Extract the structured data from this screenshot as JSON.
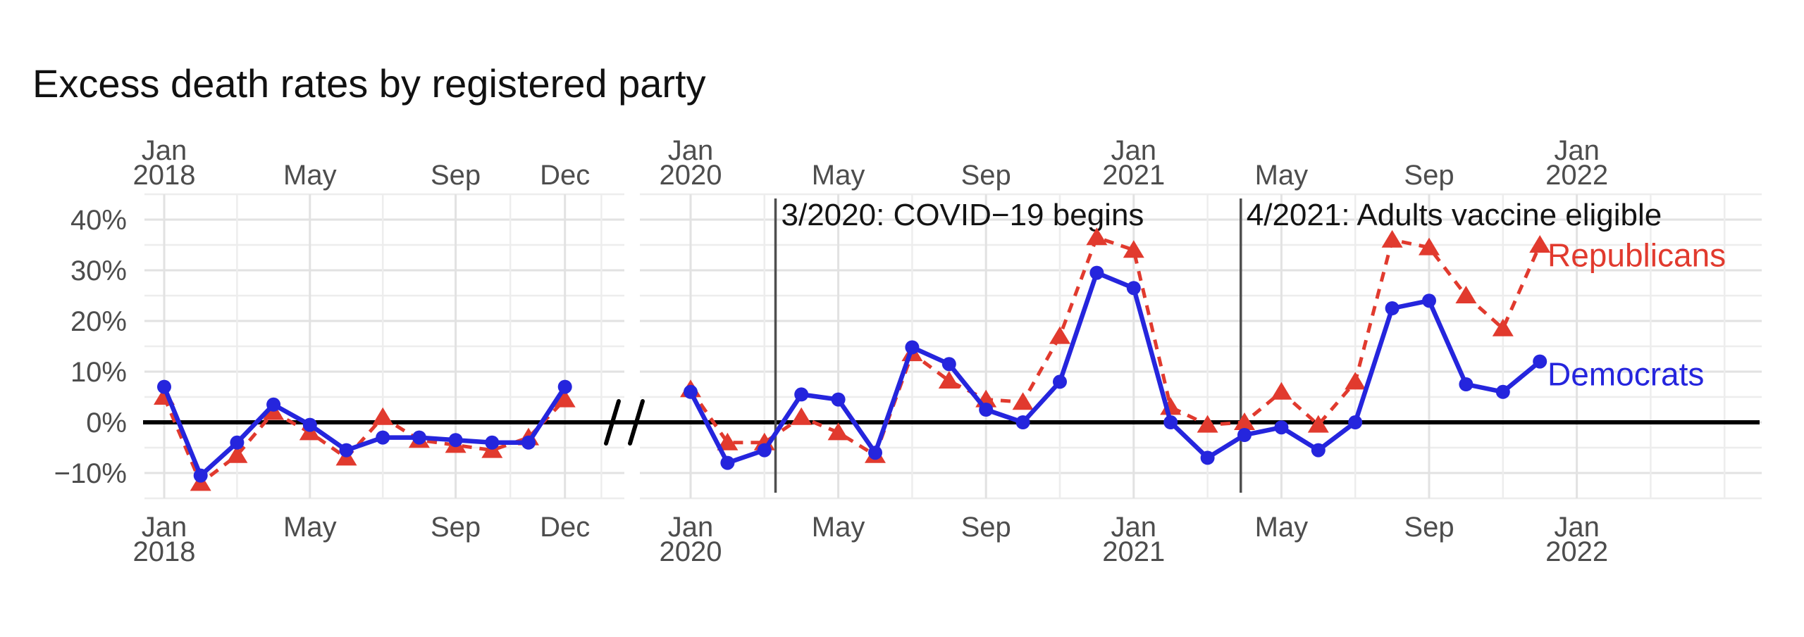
{
  "title": "Excess death rates by registered party",
  "colors": {
    "republicans": "#e13a2e",
    "democrats": "#2525dd",
    "zero_line": "#000000",
    "event_line": "#4f4f4f",
    "grid_major": "#e2e2e2",
    "grid_minor": "#ededed",
    "axis_label": "#4d4d4d",
    "annotation": "#141414",
    "background": "#ffffff"
  },
  "chart_data": {
    "type": "line",
    "title": "Excess death rates by registered party",
    "xlabel": "",
    "ylabel": "",
    "grid": true,
    "x_axis": {
      "note": "broken time axis",
      "break_between": [
        "Dec 2018",
        "Jan 2020"
      ],
      "labels_shown_top_and_bottom": true
    },
    "y_axis": {
      "ylim": [
        -15,
        45
      ],
      "major_ticks": [
        -10,
        0,
        10,
        20,
        30,
        40
      ],
      "tick_labels": [
        "−10%",
        "0%",
        "10%",
        "20%",
        "30%",
        "40%"
      ],
      "minor_ticks": [
        -15,
        -5,
        5,
        15,
        25,
        35,
        45
      ],
      "zero_reference_line": true
    },
    "panels": [
      {
        "id": "panel-2018",
        "months": [
          "Jan 2018",
          "Feb 2018",
          "Mar 2018",
          "Apr 2018",
          "May 2018",
          "Jun 2018",
          "Jul 2018",
          "Aug 2018",
          "Sep 2018",
          "Oct 2018",
          "Nov 2018",
          "Dec 2018"
        ],
        "axis_labels": [
          {
            "month": 0,
            "line1": "Jan",
            "line2": "2018"
          },
          {
            "month": 4,
            "line1": "May"
          },
          {
            "month": 8,
            "line1": "Sep"
          },
          {
            "month": 11,
            "line1": "Dec"
          }
        ],
        "grid_major_months": [
          0,
          4,
          8,
          11
        ],
        "grid_minor_months": [
          2,
          6,
          9.5,
          12
        ],
        "series": [
          {
            "name": "Republicans",
            "values": [
              5,
              -12,
              -6.5,
              2,
              -2,
              -7,
              1,
              -3.5,
              -4.5,
              -5.5,
              -3,
              4.5
            ]
          },
          {
            "name": "Democrats",
            "values": [
              7,
              -10.5,
              -4,
              3.5,
              -0.5,
              -5.5,
              -3,
              -3,
              -3.5,
              -4,
              -4,
              7
            ]
          }
        ]
      },
      {
        "id": "panel-2020-2022",
        "months": [
          "Jan 2020",
          "Feb 2020",
          "Mar 2020",
          "Apr 2020",
          "May 2020",
          "Jun 2020",
          "Jul 2020",
          "Aug 2020",
          "Sep 2020",
          "Oct 2020",
          "Nov 2020",
          "Dec 2020",
          "Jan 2021",
          "Feb 2021",
          "Mar 2021",
          "Apr 2021",
          "May 2021",
          "Jun 2021",
          "Jul 2021",
          "Aug 2021",
          "Sep 2021",
          "Oct 2021",
          "Nov 2021",
          "Dec 2021"
        ],
        "axis_labels": [
          {
            "month": 0,
            "line1": "Jan",
            "line2": "2020"
          },
          {
            "month": 4,
            "line1": "May"
          },
          {
            "month": 8,
            "line1": "Sep"
          },
          {
            "month": 12,
            "line1": "Jan",
            "line2": "2021"
          },
          {
            "month": 16,
            "line1": "May"
          },
          {
            "month": 20,
            "line1": "Sep"
          },
          {
            "month": 24,
            "line1": "Jan",
            "line2": "2022"
          }
        ],
        "grid_major_months": [
          0,
          4,
          8,
          12,
          16,
          20,
          24
        ],
        "grid_minor_months": [
          2,
          6,
          10,
          14,
          18,
          22,
          26,
          28
        ],
        "events": [
          {
            "label": "3/2020: COVID−19 begins",
            "month": 2.3
          },
          {
            "label": "4/2021: Adults vaccine eligible",
            "month": 14.9
          }
        ],
        "series": [
          {
            "name": "Republicans",
            "values": [
              6.5,
              -4,
              -4,
              1,
              -2,
              -6.5,
              13.6,
              8.2,
              4.5,
              4,
              17,
              36.5,
              34,
              3,
              -0.5,
              0,
              6,
              -0.5,
              8,
              36,
              34.5,
              25,
              18.5,
              35
            ]
          },
          {
            "name": "Democrats",
            "values": [
              6,
              -8,
              -5.5,
              5.5,
              4.5,
              -6,
              14.8,
              11.5,
              2.5,
              0,
              8,
              29.5,
              26.5,
              0,
              -7,
              -2.5,
              -1,
              -5.5,
              0,
              22.5,
              24,
              7.5,
              6,
              12
            ]
          }
        ]
      }
    ],
    "series_labels": [
      {
        "text": "Republicans",
        "color_key": "republicans",
        "y_pct": 33
      },
      {
        "text": "Democrats",
        "color_key": "democrats",
        "y_pct": 9.5
      }
    ],
    "legend_position": "inline-right"
  }
}
